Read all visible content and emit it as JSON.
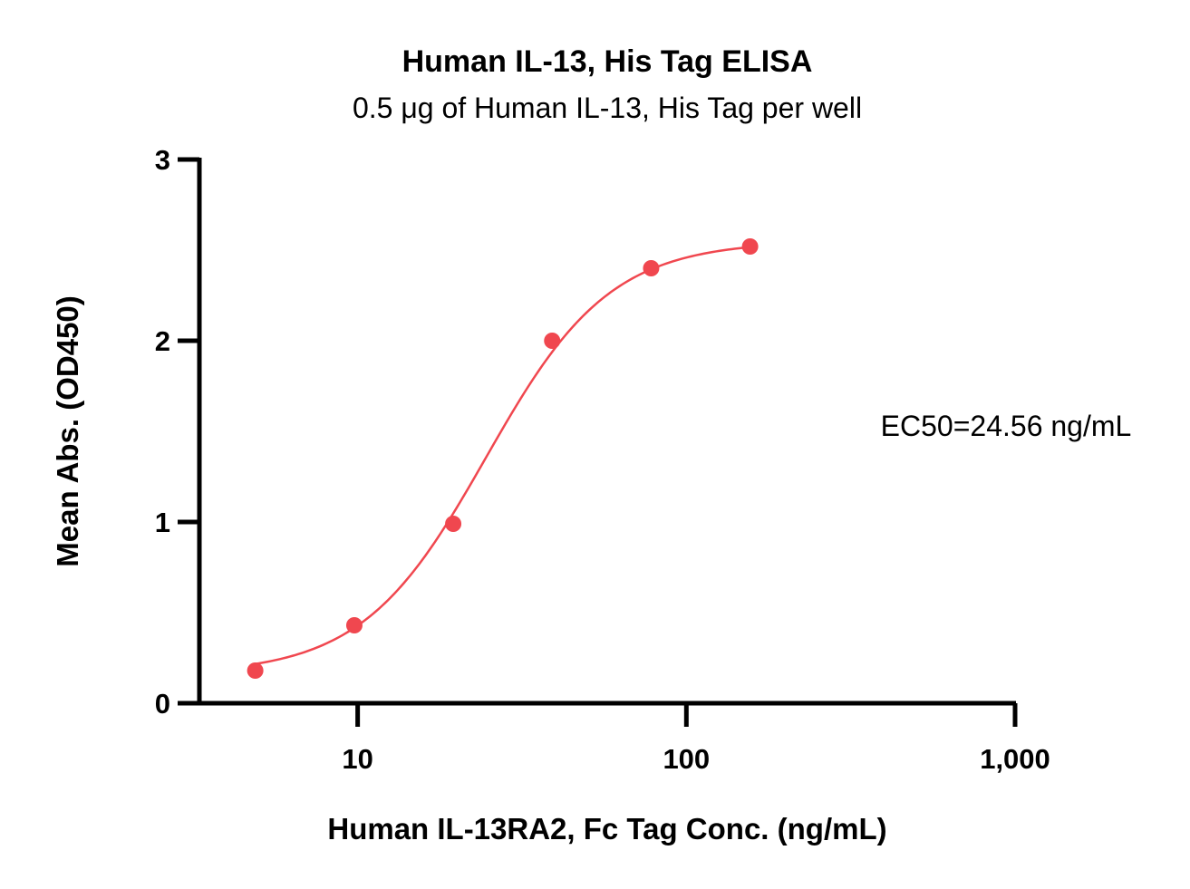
{
  "colors": {
    "series": "#f0474f",
    "axis": "#000000"
  },
  "chart_data": {
    "type": "scatter",
    "title": "Human IL-13, His Tag ELISA",
    "subtitle": "0.5 μg of Human IL-13, His Tag per well",
    "xlabel": "Human IL-13RA2, Fc Tag Conc. (ng/mL)",
    "ylabel": "Mean Abs. (OD450)",
    "x_scale": "log",
    "xlim": [
      3.3,
      1000
    ],
    "ylim": [
      0,
      3
    ],
    "x_ticks": [
      10,
      100,
      1000
    ],
    "x_tick_labels": [
      "10",
      "100",
      "1,000"
    ],
    "y_ticks": [
      0,
      1,
      2,
      3
    ],
    "y_tick_labels": [
      "0",
      "1",
      "2",
      "3"
    ],
    "grid": false,
    "legend": "none",
    "series": [
      {
        "x": [
          4.88,
          9.77,
          19.53,
          39.06,
          78.13,
          156.25
        ],
        "y": [
          0.18,
          0.43,
          0.99,
          2.0,
          2.4,
          2.52
        ]
      }
    ],
    "fit": {
      "model": "4PL",
      "bottom": 0.16,
      "top": 2.55,
      "ec50": 24.56,
      "hill": 2.3,
      "x_range": [
        4.88,
        156.25
      ]
    },
    "annotations": [
      {
        "text": "EC50=24.56 ng/mL"
      }
    ]
  }
}
